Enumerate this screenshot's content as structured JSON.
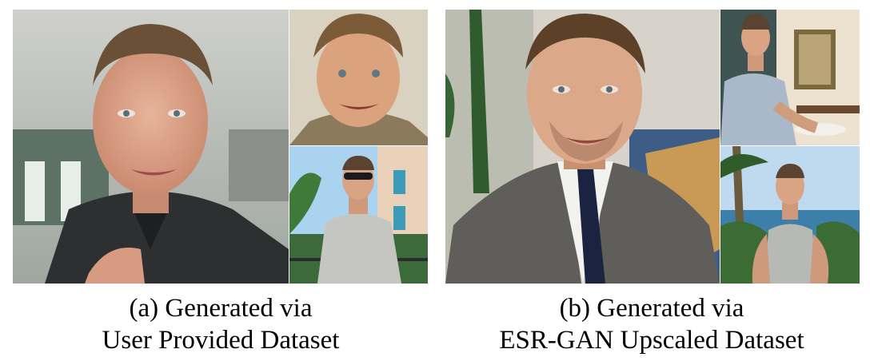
{
  "panels": [
    {
      "id": "a",
      "caption_line1": "(a) Generated via",
      "caption_line2": "User Provided Dataset"
    },
    {
      "id": "b",
      "caption_line1": "(b) Generated via",
      "caption_line2": "ESR-GAN Upscaled Dataset"
    }
  ]
}
